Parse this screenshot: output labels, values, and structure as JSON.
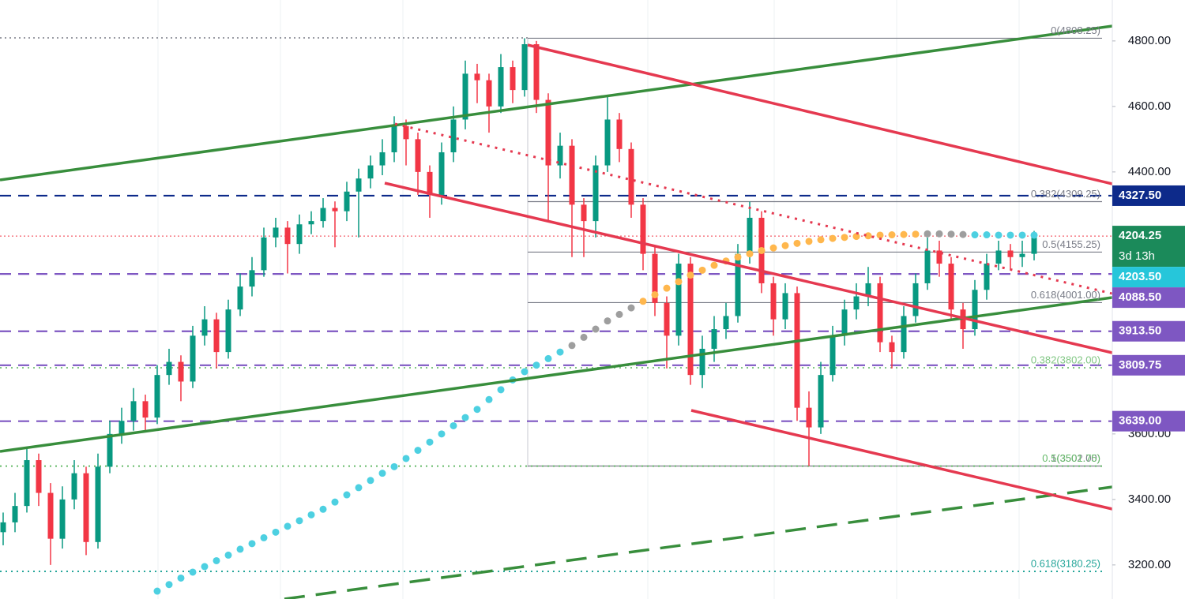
{
  "chart_data": {
    "type": "candlestick",
    "ylim": [
      3096,
      4925
    ],
    "yticks": [
      {
        "value": 3200,
        "label": "3200.00"
      },
      {
        "value": 3400,
        "label": "3400.00"
      },
      {
        "value": 3600,
        "label": "3600.00"
      },
      {
        "value": 3800,
        "label": "3800.00"
      },
      {
        "value": 4000,
        "label": "4000.00"
      },
      {
        "value": 4200,
        "label": "4200.00"
      },
      {
        "value": 4400,
        "label": "4400.00"
      },
      {
        "value": 4600,
        "label": "4600.00"
      },
      {
        "value": 4800,
        "label": "4800.00"
      }
    ],
    "up_color": "#089981",
    "down_color": "#f23645",
    "ohlc": [
      [
        3300,
        3360,
        3260,
        3330
      ],
      [
        3330,
        3420,
        3300,
        3380
      ],
      [
        3380,
        3560,
        3360,
        3520
      ],
      [
        3520,
        3540,
        3380,
        3420
      ],
      [
        3420,
        3450,
        3200,
        3280
      ],
      [
        3280,
        3440,
        3250,
        3400
      ],
      [
        3400,
        3520,
        3370,
        3480
      ],
      [
        3480,
        3500,
        3230,
        3270
      ],
      [
        3270,
        3540,
        3250,
        3500
      ],
      [
        3500,
        3640,
        3480,
        3600
      ],
      [
        3600,
        3680,
        3570,
        3640
      ],
      [
        3640,
        3740,
        3610,
        3700
      ],
      [
        3700,
        3720,
        3610,
        3650
      ],
      [
        3650,
        3810,
        3630,
        3780
      ],
      [
        3780,
        3860,
        3750,
        3820
      ],
      [
        3820,
        3840,
        3700,
        3760
      ],
      [
        3760,
        3930,
        3740,
        3900
      ],
      [
        3900,
        3990,
        3870,
        3950
      ],
      [
        3950,
        3970,
        3800,
        3850
      ],
      [
        3850,
        4010,
        3830,
        3980
      ],
      [
        3980,
        4090,
        3960,
        4050
      ],
      [
        4050,
        4140,
        4020,
        4100
      ],
      [
        4100,
        4230,
        4080,
        4200
      ],
      [
        4200,
        4260,
        4170,
        4230
      ],
      [
        4230,
        4250,
        4090,
        4180
      ],
      [
        4180,
        4270,
        4150,
        4240
      ],
      [
        4240,
        4280,
        4210,
        4250
      ],
      [
        4250,
        4320,
        4230,
        4290
      ],
      [
        4290,
        4310,
        4170,
        4280
      ],
      [
        4280,
        4370,
        4250,
        4340
      ],
      [
        4340,
        4410,
        4200,
        4380
      ],
      [
        4380,
        4450,
        4350,
        4420
      ],
      [
        4420,
        4500,
        4390,
        4460
      ],
      [
        4460,
        4570,
        4430,
        4540
      ],
      [
        4540,
        4560,
        4420,
        4500
      ],
      [
        4500,
        4520,
        4330,
        4400
      ],
      [
        4400,
        4420,
        4260,
        4330
      ],
      [
        4330,
        4490,
        4300,
        4460
      ],
      [
        4460,
        4600,
        4430,
        4560
      ],
      [
        4560,
        4740,
        4530,
        4700
      ],
      [
        4700,
        4730,
        4610,
        4680
      ],
      [
        4680,
        4700,
        4520,
        4600
      ],
      [
        4600,
        4760,
        4580,
        4720
      ],
      [
        4720,
        4740,
        4610,
        4650
      ],
      [
        4650,
        4808.25,
        4630,
        4790
      ],
      [
        4790,
        4800,
        4580,
        4620
      ],
      [
        4620,
        4640,
        4250,
        4420
      ],
      [
        4420,
        4520,
        4380,
        4480
      ],
      [
        4480,
        4500,
        4140,
        4300
      ],
      [
        4300,
        4320,
        4140,
        4250
      ],
      [
        4250,
        4450,
        4200,
        4420
      ],
      [
        4420,
        4630,
        4400,
        4560
      ],
      [
        4560,
        4580,
        4430,
        4470
      ],
      [
        4470,
        4490,
        4260,
        4300
      ],
      [
        4300,
        4320,
        4100,
        4150
      ],
      [
        4150,
        4170,
        3960,
        4000
      ],
      [
        4000,
        4020,
        3800,
        3900
      ],
      [
        3900,
        4150,
        3870,
        4120
      ],
      [
        4120,
        4140,
        3750,
        3780
      ],
      [
        3780,
        3900,
        3740,
        3860
      ],
      [
        3860,
        3960,
        3820,
        3920
      ],
      [
        3920,
        4000,
        3890,
        3960
      ],
      [
        3960,
        4180,
        3940,
        4150
      ],
      [
        4150,
        4309.25,
        4120,
        4260
      ],
      [
        4260,
        4280,
        4030,
        4060
      ],
      [
        4060,
        4080,
        3900,
        3950
      ],
      [
        3950,
        4060,
        3920,
        4030
      ],
      [
        4030,
        4050,
        3640,
        3680
      ],
      [
        3680,
        3730,
        3502,
        3620
      ],
      [
        3620,
        3820,
        3600,
        3780
      ],
      [
        3780,
        3930,
        3760,
        3900
      ],
      [
        3900,
        4010,
        3870,
        3980
      ],
      [
        3980,
        4060,
        3950,
        4020
      ],
      [
        4020,
        4110,
        3990,
        4060
      ],
      [
        4060,
        4080,
        3850,
        3880
      ],
      [
        3880,
        3900,
        3800,
        3850
      ],
      [
        3850,
        3990,
        3830,
        3960
      ],
      [
        3960,
        4090,
        3940,
        4060
      ],
      [
        4060,
        4200,
        4040,
        4160
      ],
      [
        4160,
        4190,
        4080,
        4120
      ],
      [
        4120,
        4140,
        3950,
        3980
      ],
      [
        3980,
        4000,
        3860,
        3920
      ],
      [
        3920,
        4070,
        3900,
        4040
      ],
      [
        4040,
        4150,
        4010,
        4120
      ],
      [
        4120,
        4190,
        4100,
        4160
      ],
      [
        4160,
        4180,
        4100,
        4140
      ],
      [
        4140,
        4190,
        4110,
        4150
      ],
      [
        4150,
        4220,
        4130,
        4204.25
      ]
    ],
    "ma": [
      {
        "color": "#4dd0e1",
        "x": [
          13,
          14,
          15,
          16,
          17,
          18,
          19,
          20,
          21,
          22,
          23,
          24,
          25,
          26,
          27,
          28,
          29,
          30,
          31,
          32,
          33,
          34,
          35,
          36,
          37,
          38,
          39,
          40,
          41,
          42,
          43,
          44,
          45,
          46,
          47
        ],
        "values": [
          3120,
          3140,
          3160,
          3178,
          3195,
          3213,
          3230,
          3248,
          3265,
          3283,
          3300,
          3318,
          3335,
          3353,
          3370,
          3392,
          3414,
          3436,
          3458,
          3480,
          3500,
          3525,
          3550,
          3575,
          3600,
          3625,
          3650,
          3675,
          3705,
          3735,
          3765,
          3790,
          3810,
          3830,
          3850
        ]
      },
      {
        "color": "#9e9e9e",
        "x": [
          48,
          49,
          50,
          51,
          52,
          53
        ],
        "values": [
          3870,
          3895,
          3920,
          3945,
          3965,
          3985
        ]
      },
      {
        "color": "#ffb74d",
        "x": [
          54,
          55,
          56,
          57,
          58,
          59,
          60,
          61,
          62,
          63,
          64,
          65,
          66,
          67,
          68,
          69,
          70,
          71,
          72,
          73,
          74,
          75,
          76,
          77
        ],
        "values": [
          4005,
          4025,
          4045,
          4065,
          4085,
          4100,
          4115,
          4128,
          4140,
          4150,
          4160,
          4168,
          4175,
          4182,
          4188,
          4193,
          4197,
          4200,
          4203,
          4205,
          4207,
          4208,
          4209,
          4210
        ]
      },
      {
        "color": "#9e9e9e",
        "x": [
          78,
          79,
          80,
          81
        ],
        "values": [
          4211,
          4211,
          4210,
          4209
        ]
      },
      {
        "color": "#4dd0e1",
        "x": [
          82,
          83,
          84,
          85,
          86,
          87
        ],
        "values": [
          4208,
          4208,
          4207,
          4207,
          4207,
          4207
        ]
      }
    ],
    "fib_levels": [
      {
        "value": 4808.25,
        "label": "0(4808.25)",
        "color": "#787b86",
        "style": "solid"
      },
      {
        "value": 4309.25,
        "label": "0.382(4309.25)",
        "color": "#787b86",
        "style": "solid"
      },
      {
        "value": 4155.25,
        "label": "0.5(4155.25)",
        "color": "#787b86",
        "style": "solid"
      },
      {
        "value": 4001,
        "label": "0.618(4001.00)",
        "color": "#787b86",
        "style": "solid"
      },
      {
        "value": 3502,
        "label": "1(3502.00)",
        "color": "#787b86",
        "style": "solid"
      },
      {
        "value": 3802,
        "label": "0.382(3802.00)",
        "color": "#81c784",
        "style": "dotted"
      },
      {
        "value": 3501.75,
        "label": "0.5(3501.75)",
        "color": "#66bb6a",
        "style": "dotted"
      },
      {
        "value": 3180.25,
        "label": "0.618(3180.25)",
        "color": "#26a69a",
        "style": "dotted"
      }
    ],
    "price_labels": [
      {
        "value": 4327.5,
        "label": "4327.50",
        "color": "#0d2a8a",
        "line": "dashed",
        "line_color": "#0d2a8a"
      },
      {
        "value": 4204.25,
        "color": "#1b8a5a",
        "countdown": "3d 13h",
        "line": "dotted",
        "line_color": "#f23645"
      },
      {
        "value": 4203.5,
        "label": "4203.50",
        "color": "#26c6da"
      },
      {
        "value": 4088.5,
        "label": "4088.50",
        "color": "#7e57c2",
        "line": "dashed",
        "line_color": "#7e57c2"
      },
      {
        "value": 3913.5,
        "label": "3913.50",
        "color": "#7e57c2",
        "line": "dashed",
        "line_color": "#7e57c2"
      },
      {
        "value": 3809.75,
        "color": "#7e57c2",
        "line": "dashed",
        "line_color": "#7e57c2"
      },
      {
        "value": 3639,
        "label": "3639.00",
        "color": "#7e57c2",
        "line": "dashed",
        "line_color": "#7e57c2"
      }
    ]
  }
}
